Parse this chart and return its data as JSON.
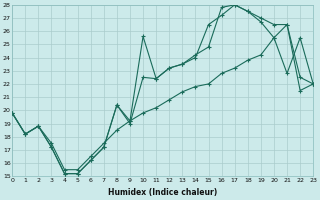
{
  "xlabel": "Humidex (Indice chaleur)",
  "bg_color": "#cceaea",
  "grid_color": "#aacccc",
  "line_color": "#1a6b5a",
  "xlim": [
    0,
    23
  ],
  "ylim": [
    15,
    28
  ],
  "xticks": [
    0,
    1,
    2,
    3,
    4,
    5,
    6,
    7,
    8,
    9,
    10,
    11,
    12,
    13,
    14,
    15,
    16,
    17,
    18,
    19,
    20,
    21,
    22,
    23
  ],
  "yticks": [
    15,
    16,
    17,
    18,
    19,
    20,
    21,
    22,
    23,
    24,
    25,
    26,
    27,
    28
  ],
  "line1_x": [
    0,
    1,
    2,
    3,
    4,
    5,
    6,
    7,
    8,
    9,
    10,
    11,
    12,
    13,
    14,
    15,
    16,
    17,
    18,
    19,
    20,
    21,
    22,
    23
  ],
  "line1_y": [
    19.8,
    18.2,
    18.8,
    17.2,
    15.2,
    15.2,
    16.2,
    17.2,
    20.4,
    19.2,
    25.6,
    22.4,
    23.2,
    23.5,
    24.2,
    24.8,
    27.8,
    28.0,
    27.5,
    26.7,
    25.5,
    22.8,
    25.5,
    22.0
  ],
  "line2_x": [
    0,
    1,
    2,
    3,
    4,
    5,
    6,
    7,
    8,
    9,
    10,
    11,
    12,
    13,
    14,
    15,
    16,
    17,
    18,
    19,
    20,
    21,
    22,
    23
  ],
  "line2_y": [
    19.8,
    18.2,
    18.8,
    17.2,
    15.2,
    15.2,
    16.2,
    17.2,
    20.4,
    19.0,
    22.5,
    22.4,
    23.2,
    23.5,
    24.0,
    26.5,
    27.2,
    28.0,
    27.5,
    27.0,
    26.5,
    26.5,
    22.5,
    22.0
  ],
  "line3_x": [
    0,
    1,
    2,
    3,
    4,
    5,
    6,
    7,
    8,
    9,
    10,
    11,
    12,
    13,
    14,
    15,
    16,
    17,
    18,
    19,
    20,
    21,
    22,
    23
  ],
  "line3_y": [
    19.8,
    18.2,
    18.8,
    17.5,
    15.5,
    15.5,
    16.5,
    17.5,
    18.5,
    19.2,
    19.8,
    20.2,
    20.8,
    21.4,
    21.8,
    22.0,
    22.8,
    23.2,
    23.8,
    24.2,
    25.5,
    26.5,
    21.5,
    22.0
  ]
}
